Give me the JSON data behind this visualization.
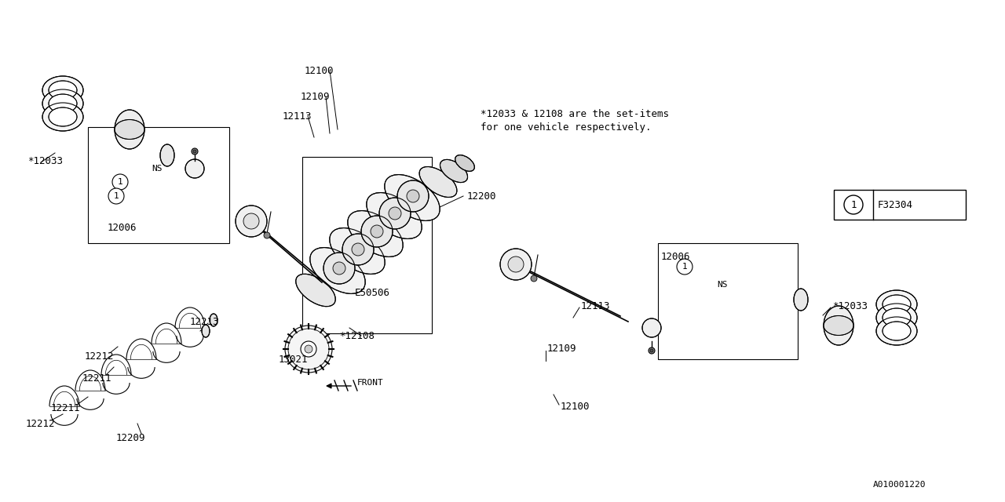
{
  "bg_color": "#ffffff",
  "line_color": "#000000",
  "note_line1": "*12033 & 12108 are the set-items",
  "note_line2": "for one vehicle respectively.",
  "font_size_labels": 9,
  "font_family": "monospace",
  "watermark": "A010001220",
  "f32304_label": "F32304",
  "front_label": "FRONT"
}
